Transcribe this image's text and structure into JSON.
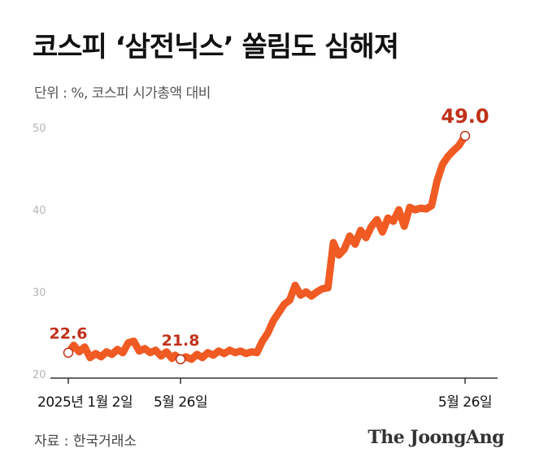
{
  "header": {
    "title": "코스피 ‘삼전닉스’ 쏠림도 심해져",
    "unit_label": "단위 : %, 코스피 시가총액 대비"
  },
  "footer": {
    "source": "자료 : 한국거래소",
    "brand": "The JoongAng"
  },
  "colors": {
    "line": "#f05a23",
    "highlight_text": "#c0311a",
    "axis": "#333333",
    "tick_label": "#b5b5b5"
  },
  "chart_data": {
    "type": "line",
    "title": "코스피 ‘삼전닉스’ 쏠림도 심해져",
    "ylabel": "단위 : %, 코스피 시가총액 대비",
    "ylim": [
      20,
      50
    ],
    "yticks": [
      "20",
      "30",
      "40",
      "50"
    ],
    "xlim": [
      "2025-01-02",
      "2026-05-26"
    ],
    "xtick_labels": [
      {
        "date": "2025-01-02",
        "label": "2025년 1월 2일"
      },
      {
        "date": "2025-05-26",
        "label": "5월 26일"
      },
      {
        "date": "2026-05-26",
        "label": "5월 26일"
      }
    ],
    "series": [
      {
        "points": [
          [
            "2025-01-02",
            22.6
          ],
          [
            "2025-01-09",
            23.5
          ],
          [
            "2025-01-16",
            22.7
          ],
          [
            "2025-01-23",
            23.3
          ],
          [
            "2025-01-30",
            22.0
          ],
          [
            "2025-02-06",
            22.5
          ],
          [
            "2025-02-13",
            22.1
          ],
          [
            "2025-02-20",
            22.7
          ],
          [
            "2025-02-27",
            22.4
          ],
          [
            "2025-03-06",
            23.0
          ],
          [
            "2025-03-13",
            22.6
          ],
          [
            "2025-03-20",
            23.8
          ],
          [
            "2025-03-27",
            24.0
          ],
          [
            "2025-04-03",
            22.8
          ],
          [
            "2025-04-10",
            23.1
          ],
          [
            "2025-04-17",
            22.6
          ],
          [
            "2025-04-24",
            22.9
          ],
          [
            "2025-05-01",
            22.2
          ],
          [
            "2025-05-08",
            22.7
          ],
          [
            "2025-05-15",
            21.9
          ],
          [
            "2025-05-19",
            22.3
          ],
          [
            "2025-05-26",
            21.8
          ],
          [
            "2025-06-02",
            22.1
          ],
          [
            "2025-06-09",
            21.8
          ],
          [
            "2025-06-16",
            22.4
          ],
          [
            "2025-06-23",
            22.0
          ],
          [
            "2025-06-30",
            22.6
          ],
          [
            "2025-07-07",
            22.3
          ],
          [
            "2025-07-14",
            22.8
          ],
          [
            "2025-07-21",
            22.5
          ],
          [
            "2025-07-28",
            22.9
          ],
          [
            "2025-08-04",
            22.6
          ],
          [
            "2025-08-11",
            22.8
          ],
          [
            "2025-08-18",
            22.5
          ],
          [
            "2025-08-25",
            22.7
          ],
          [
            "2025-09-01",
            22.6
          ],
          [
            "2025-09-08",
            24.0
          ],
          [
            "2025-09-15",
            25.0
          ],
          [
            "2025-09-22",
            26.5
          ],
          [
            "2025-09-29",
            27.5
          ],
          [
            "2025-10-06",
            28.5
          ],
          [
            "2025-10-13",
            29.0
          ],
          [
            "2025-10-20",
            30.8
          ],
          [
            "2025-10-27",
            29.6
          ],
          [
            "2025-11-03",
            30.0
          ],
          [
            "2025-11-10",
            29.5
          ],
          [
            "2025-11-17",
            30.0
          ],
          [
            "2025-11-24",
            30.4
          ],
          [
            "2025-12-01",
            30.5
          ],
          [
            "2025-12-08",
            36.0
          ],
          [
            "2025-12-15",
            34.5
          ],
          [
            "2025-12-22",
            35.2
          ],
          [
            "2025-12-29",
            36.8
          ],
          [
            "2026-01-05",
            35.8
          ],
          [
            "2026-01-12",
            37.5
          ],
          [
            "2026-01-19",
            36.6
          ],
          [
            "2026-01-26",
            38.0
          ],
          [
            "2026-02-02",
            38.8
          ],
          [
            "2026-02-09",
            37.3
          ],
          [
            "2026-02-16",
            39.0
          ],
          [
            "2026-02-23",
            38.6
          ],
          [
            "2026-03-02",
            40.0
          ],
          [
            "2026-03-09",
            38.0
          ],
          [
            "2026-03-16",
            40.3
          ],
          [
            "2026-03-23",
            40.0
          ],
          [
            "2026-03-30",
            40.2
          ],
          [
            "2026-04-06",
            40.1
          ],
          [
            "2026-04-13",
            40.5
          ],
          [
            "2026-04-20",
            43.5
          ],
          [
            "2026-04-27",
            45.5
          ],
          [
            "2026-05-04",
            46.5
          ],
          [
            "2026-05-11",
            47.2
          ],
          [
            "2026-05-18",
            47.8
          ],
          [
            "2026-05-26",
            49.0
          ]
        ]
      }
    ],
    "annotations": [
      {
        "date": "2025-01-02",
        "value": 22.6,
        "label": "22.6"
      },
      {
        "date": "2025-05-26",
        "value": 21.8,
        "label": "21.8"
      },
      {
        "date": "2026-05-26",
        "value": 49.0,
        "label": "49.0"
      }
    ],
    "grid": false,
    "legend": "none"
  }
}
